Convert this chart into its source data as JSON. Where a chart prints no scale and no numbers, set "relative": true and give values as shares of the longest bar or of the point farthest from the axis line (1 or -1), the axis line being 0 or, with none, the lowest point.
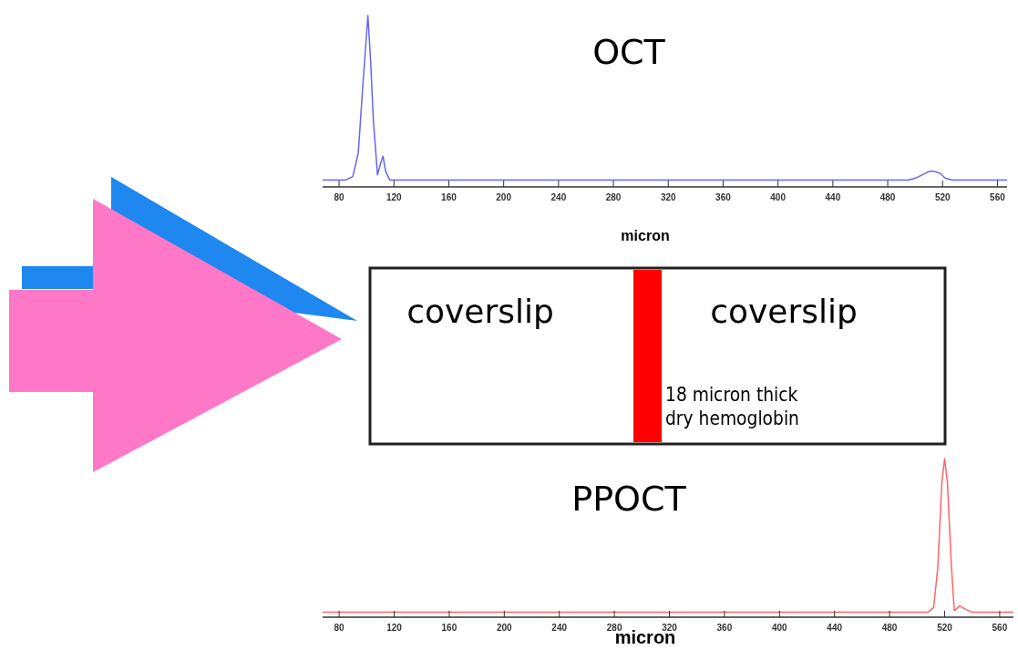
{
  "chart_data": [
    {
      "type": "line",
      "title": "OCT",
      "xlabel": "micron",
      "relative": true,
      "xlim": [
        68,
        567
      ],
      "xticks": [
        80,
        120,
        160,
        200,
        240,
        280,
        320,
        360,
        400,
        440,
        480,
        520,
        560
      ],
      "x": [
        68,
        85,
        90,
        94,
        97,
        101,
        103,
        105,
        108,
        110,
        112,
        114,
        117,
        200,
        300,
        400,
        495,
        500,
        505,
        510,
        514,
        518,
        522,
        527,
        567
      ],
      "series": [
        {
          "color": "#6666ee",
          "values": [
            0.03,
            0.03,
            0.05,
            0.19,
            0.55,
            1.0,
            0.73,
            0.38,
            0.06,
            0.12,
            0.17,
            0.08,
            0.03,
            0.03,
            0.03,
            0.03,
            0.03,
            0.04,
            0.06,
            0.08,
            0.08,
            0.07,
            0.04,
            0.03,
            0.03
          ]
        }
      ]
    },
    {
      "type": "line",
      "title": "PPOCT",
      "xlabel": "micron",
      "relative": true,
      "xlim": [
        68,
        570
      ],
      "xticks": [
        80,
        120,
        160,
        200,
        240,
        280,
        320,
        360,
        400,
        440,
        480,
        520,
        560
      ],
      "x": [
        68,
        200,
        300,
        400,
        508,
        512,
        515,
        518,
        520,
        522,
        525,
        527,
        531,
        535,
        540,
        570
      ],
      "series": [
        {
          "color": "#ff6666",
          "values": [
            0.02,
            0.02,
            0.02,
            0.02,
            0.02,
            0.05,
            0.3,
            0.85,
            1.0,
            0.85,
            0.3,
            0.03,
            0.06,
            0.04,
            0.02,
            0.02
          ]
        }
      ]
    },
    {
      "type": "other",
      "annotations": [
        "coverslip",
        "coverslip",
        "18 micron thick\ndry hemoglobin"
      ]
    }
  ]
}
